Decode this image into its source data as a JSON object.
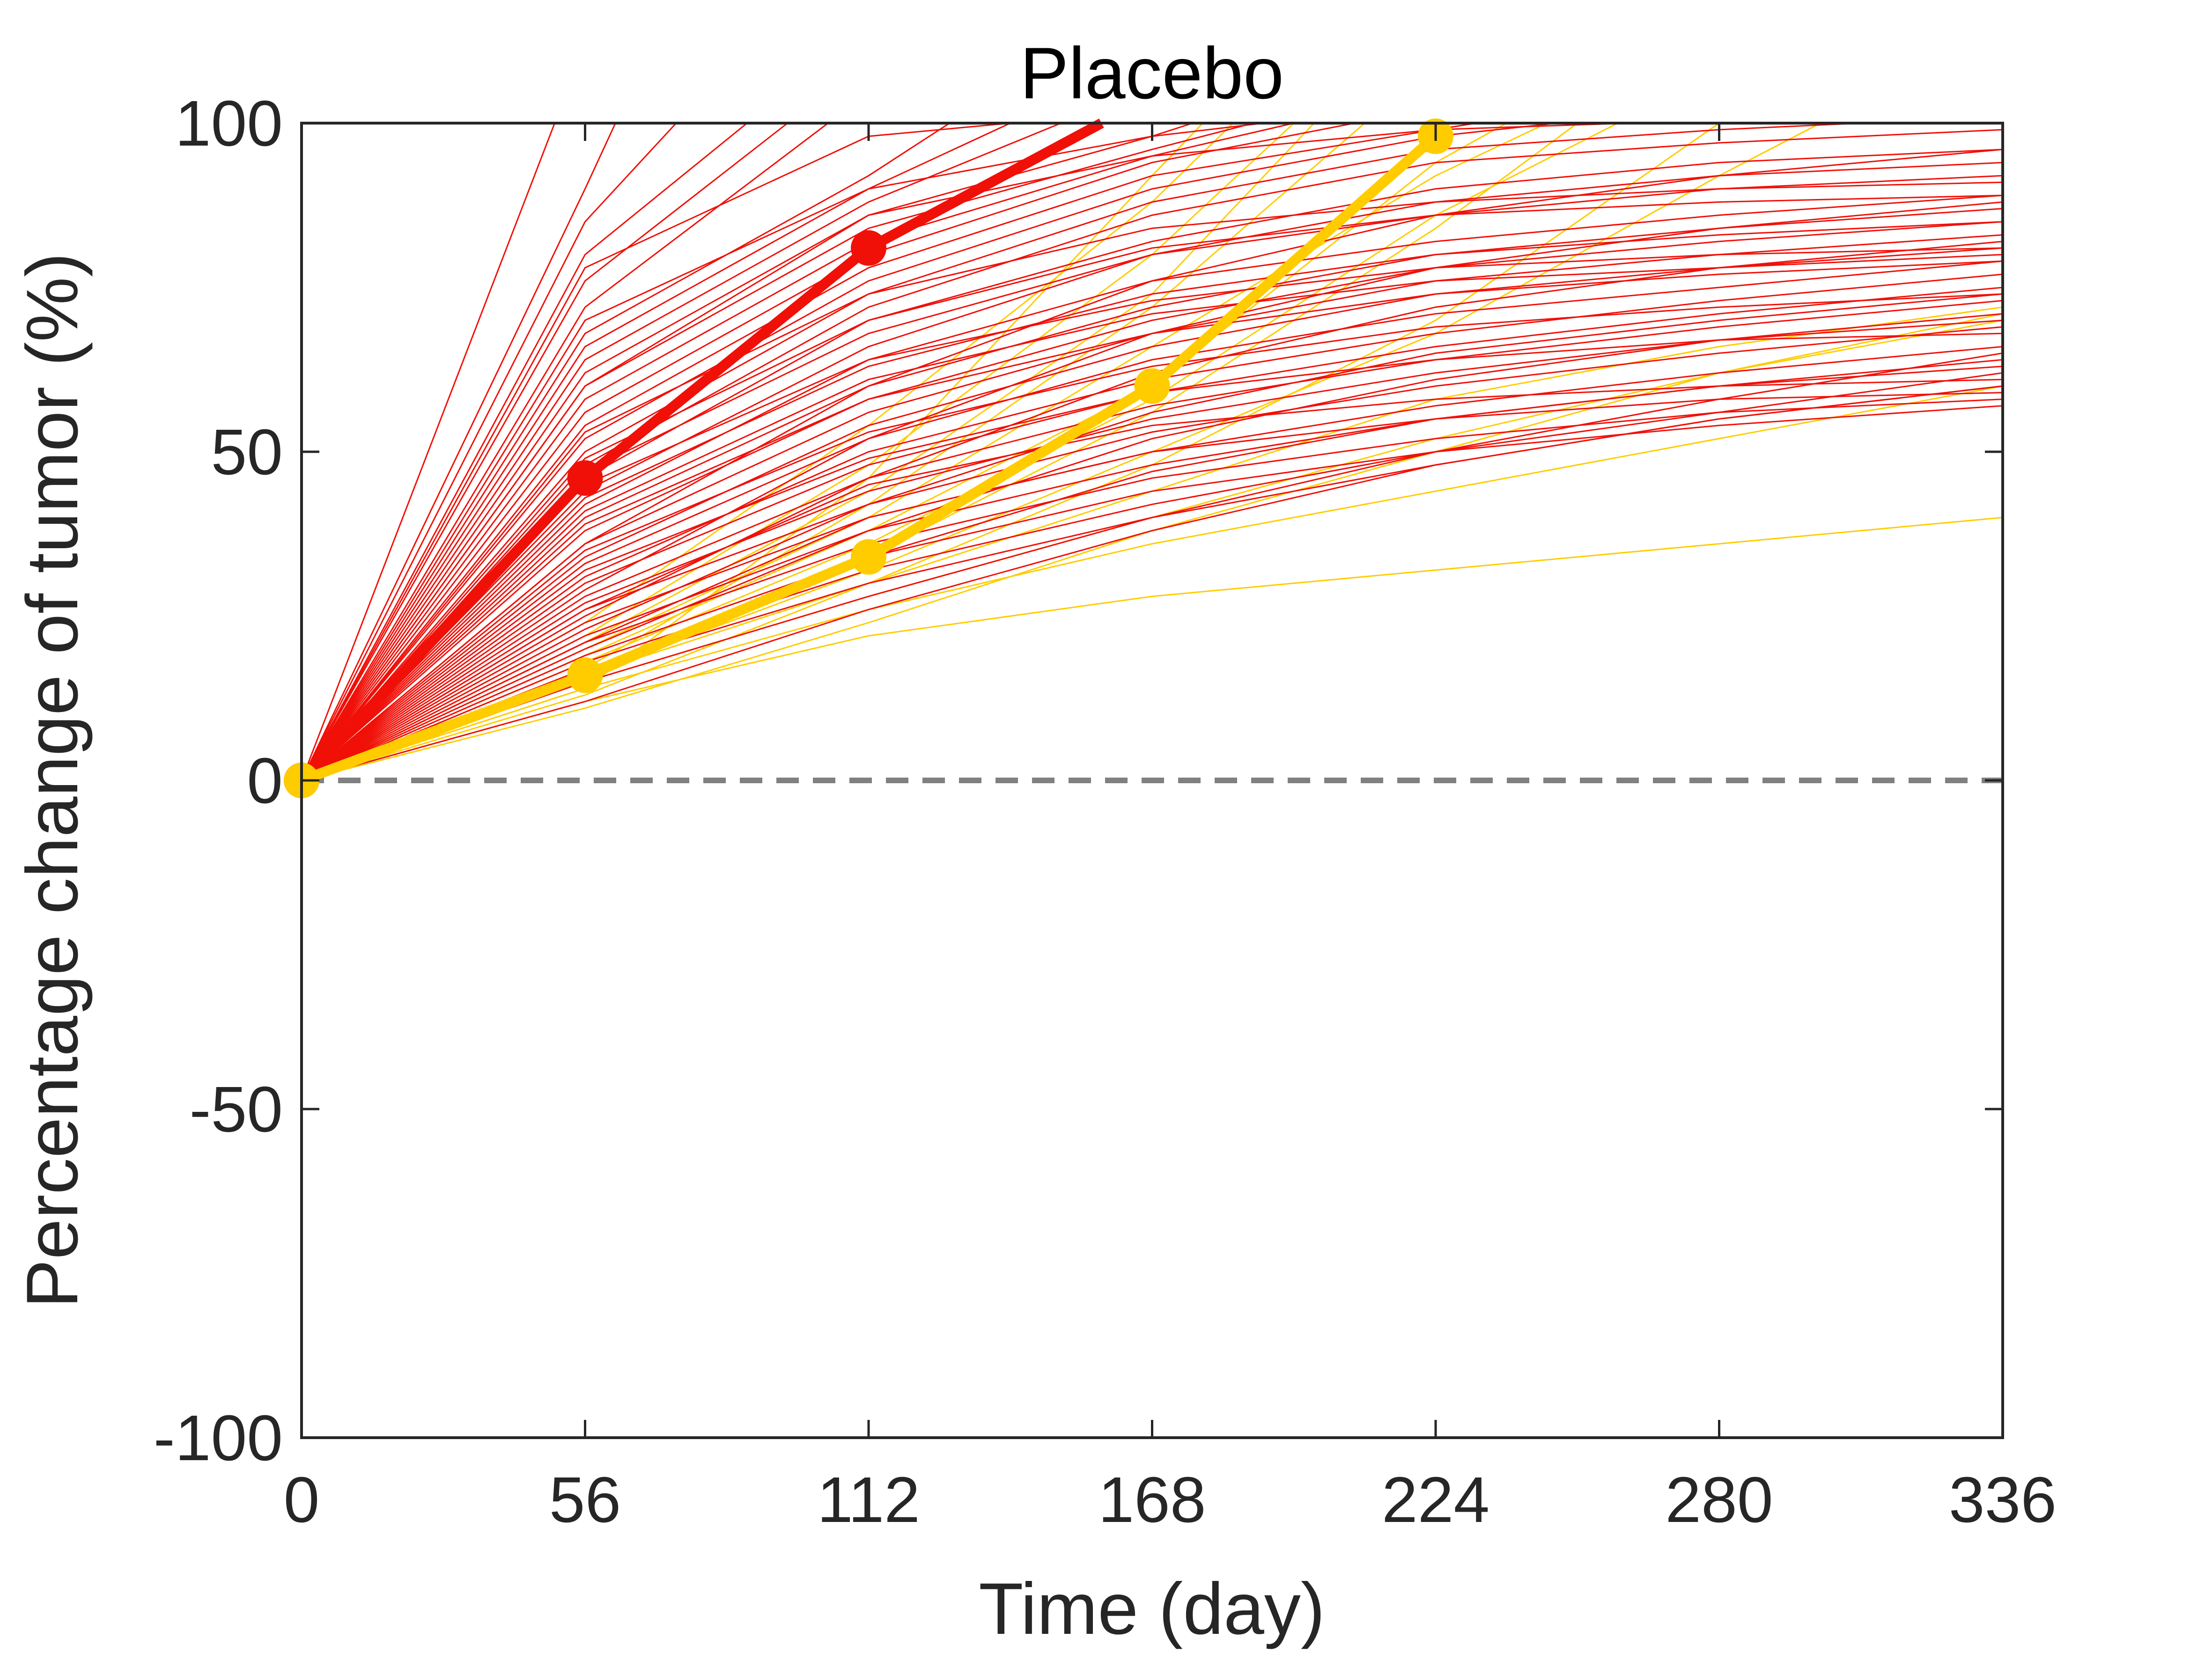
{
  "chart_data": {
    "type": "line",
    "title": "Placebo",
    "xlabel": "Time (day)",
    "ylabel": "Percentage change of tumor (%)",
    "xlim": [
      0,
      336
    ],
    "ylim": [
      -100,
      100
    ],
    "xticks": [
      0,
      56,
      112,
      168,
      224,
      280,
      336
    ],
    "yticks": [
      -100,
      -50,
      0,
      50,
      100
    ],
    "xtick_labels": [
      "0",
      "56",
      "112",
      "168",
      "224",
      "280",
      "336"
    ],
    "ytick_labels": [
      "-100",
      "-50",
      "0",
      "50",
      "100"
    ],
    "grid": false,
    "reference_line": {
      "y": 0,
      "style": "dashed",
      "color": "#808080"
    },
    "colors": {
      "red": "#f01008",
      "yellow": "#ffcc00"
    },
    "highlight_series": [
      {
        "color": "#f01008",
        "x": [
          0,
          56,
          112,
          158
        ],
        "y": [
          0,
          46,
          81,
          100
        ]
      },
      {
        "color": "#ffcc00",
        "x": [
          0,
          56,
          112,
          168,
          224
        ],
        "y": [
          0,
          16,
          34,
          60,
          98
        ]
      }
    ],
    "individual_red_series": [
      {
        "x": [
          0,
          50
        ],
        "y": [
          0,
          100
        ]
      },
      {
        "x": [
          0,
          56,
          62
        ],
        "y": [
          0,
          90,
          100
        ]
      },
      {
        "x": [
          0,
          56,
          74
        ],
        "y": [
          0,
          85,
          100
        ]
      },
      {
        "x": [
          0,
          56,
          88
        ],
        "y": [
          0,
          80,
          100
        ]
      },
      {
        "x": [
          0,
          56,
          96
        ],
        "y": [
          0,
          76,
          100
        ]
      },
      {
        "x": [
          0,
          56,
          104
        ],
        "y": [
          0,
          72,
          100
        ]
      },
      {
        "x": [
          0,
          56,
          112,
          128
        ],
        "y": [
          0,
          68,
          92,
          100
        ]
      },
      {
        "x": [
          0,
          56,
          112,
          140
        ],
        "y": [
          0,
          66,
          90,
          100
        ]
      },
      {
        "x": [
          0,
          56,
          112,
          150
        ],
        "y": [
          0,
          64,
          88,
          100
        ]
      },
      {
        "x": [
          0,
          56,
          112,
          168,
          176
        ],
        "y": [
          0,
          62,
          86,
          98,
          100
        ]
      },
      {
        "x": [
          0,
          56,
          112,
          168,
          188
        ],
        "y": [
          0,
          60,
          84,
          96,
          100
        ]
      },
      {
        "x": [
          0,
          56,
          112,
          168,
          196
        ],
        "y": [
          0,
          58,
          82,
          95,
          100
        ]
      },
      {
        "x": [
          0,
          56,
          112,
          168,
          208
        ],
        "y": [
          0,
          56,
          80,
          94,
          100
        ]
      },
      {
        "x": [
          0,
          56,
          112,
          168,
          224,
          232
        ],
        "y": [
          0,
          54,
          78,
          92,
          99,
          100
        ]
      },
      {
        "x": [
          0,
          56,
          112,
          168,
          224,
          248
        ],
        "y": [
          0,
          52,
          76,
          90,
          98,
          100
        ]
      },
      {
        "x": [
          0,
          56,
          112,
          168,
          224,
          280,
          308
        ],
        "y": [
          0,
          50,
          74,
          88,
          96,
          99,
          100
        ]
      },
      {
        "x": [
          0,
          56,
          112,
          168,
          224,
          280,
          336
        ],
        "y": [
          0,
          48,
          72,
          86,
          94,
          97,
          99
        ]
      },
      {
        "x": [
          0,
          56,
          112,
          168,
          224,
          280,
          336
        ],
        "y": [
          0,
          46,
          70,
          82,
          90,
          94,
          96
        ]
      },
      {
        "x": [
          0,
          56,
          112,
          168,
          224,
          280,
          336
        ],
        "y": [
          0,
          44,
          66,
          80,
          86,
          90,
          92
        ]
      },
      {
        "x": [
          0,
          56,
          112,
          168,
          224,
          280,
          336
        ],
        "y": [
          0,
          42,
          64,
          76,
          82,
          86,
          89
        ]
      },
      {
        "x": [
          0,
          56,
          112,
          168,
          224,
          280,
          336
        ],
        "y": [
          0,
          40,
          60,
          72,
          80,
          84,
          87
        ]
      },
      {
        "x": [
          0,
          56,
          112,
          168,
          224,
          280,
          336
        ],
        "y": [
          0,
          38,
          58,
          70,
          78,
          82,
          85
        ]
      },
      {
        "x": [
          0,
          56,
          112,
          168,
          224,
          280,
          336
        ],
        "y": [
          0,
          36,
          56,
          68,
          76,
          80,
          83
        ]
      },
      {
        "x": [
          0,
          56,
          112,
          168,
          224,
          280,
          336
        ],
        "y": [
          0,
          34,
          54,
          66,
          74,
          78,
          81
        ]
      },
      {
        "x": [
          0,
          56,
          112,
          168,
          224,
          280,
          336
        ],
        "y": [
          0,
          33,
          52,
          64,
          71,
          75,
          79
        ]
      },
      {
        "x": [
          0,
          56,
          112,
          168,
          224,
          280,
          336
        ],
        "y": [
          0,
          31,
          50,
          61,
          68,
          73,
          77
        ]
      },
      {
        "x": [
          0,
          56,
          112,
          168,
          224,
          280,
          336
        ],
        "y": [
          0,
          30,
          48,
          59,
          66,
          71,
          75
        ]
      },
      {
        "x": [
          0,
          56,
          112,
          168,
          224,
          280,
          336
        ],
        "y": [
          0,
          28,
          46,
          57,
          64,
          69,
          73
        ]
      },
      {
        "x": [
          0,
          56,
          112,
          168,
          224,
          280,
          336
        ],
        "y": [
          0,
          27,
          44,
          55,
          62,
          67,
          71
        ]
      },
      {
        "x": [
          0,
          56,
          112,
          168,
          224,
          280,
          336
        ],
        "y": [
          0,
          26,
          42,
          53,
          60,
          65,
          69
        ]
      },
      {
        "x": [
          0,
          56,
          112,
          168,
          224,
          280,
          336
        ],
        "y": [
          0,
          24,
          40,
          50,
          57,
          62,
          66
        ]
      },
      {
        "x": [
          0,
          56,
          112,
          168,
          224,
          280,
          336
        ],
        "y": [
          0,
          22,
          38,
          48,
          55,
          60,
          64
        ]
      },
      {
        "x": [
          0,
          56,
          112,
          168,
          224,
          280,
          336
        ],
        "y": [
          0,
          21,
          36,
          46,
          52,
          56,
          58
        ]
      },
      {
        "x": [
          0,
          56,
          112,
          168,
          224,
          280,
          336
        ],
        "y": [
          0,
          19,
          34,
          44,
          50,
          54,
          57
        ]
      },
      {
        "x": [
          0,
          56,
          112,
          168,
          224,
          280,
          336
        ],
        "y": [
          0,
          18,
          32,
          42,
          50,
          56,
          62
        ]
      },
      {
        "x": [
          0,
          56,
          112,
          168,
          224,
          280,
          336
        ],
        "y": [
          0,
          17,
          30,
          40,
          48,
          55,
          60
        ]
      },
      {
        "x": [
          0,
          56,
          112,
          168,
          224,
          280,
          336
        ],
        "y": [
          0,
          36,
          60,
          76,
          86,
          92,
          96
        ]
      },
      {
        "x": [
          0,
          56,
          112,
          168,
          224,
          280,
          336
        ],
        "y": [
          0,
          29,
          52,
          68,
          78,
          84,
          88
        ]
      },
      {
        "x": [
          0,
          56,
          112,
          168,
          224,
          280,
          336
        ],
        "y": [
          0,
          25,
          46,
          62,
          72,
          78,
          82
        ]
      },
      {
        "x": [
          0,
          56,
          112,
          168,
          224,
          280,
          336
        ],
        "y": [
          0,
          23,
          42,
          56,
          65,
          70,
          74
        ]
      },
      {
        "x": [
          0,
          56,
          112,
          168,
          224,
          280,
          336
        ],
        "y": [
          0,
          20,
          38,
          52,
          61,
          67,
          70
        ]
      },
      {
        "x": [
          0,
          56,
          112,
          168,
          224,
          280,
          336
        ],
        "y": [
          0,
          16,
          34,
          47,
          55,
          60,
          63
        ]
      },
      {
        "x": [
          0,
          56,
          112,
          140
        ],
        "y": [
          0,
          78,
          98,
          100
        ]
      },
      {
        "x": [
          0,
          56,
          112,
          168,
          190
        ],
        "y": [
          0,
          70,
          90,
          98,
          100
        ]
      },
      {
        "x": [
          0,
          56,
          112,
          168,
          224,
          262
        ],
        "y": [
          0,
          60,
          86,
          95,
          99,
          100
        ]
      },
      {
        "x": [
          0,
          56,
          112,
          168,
          224,
          280,
          336
        ],
        "y": [
          0,
          47,
          68,
          80,
          88,
          92,
          94
        ]
      },
      {
        "x": [
          0,
          56,
          112,
          168,
          224,
          280,
          336
        ],
        "y": [
          0,
          43,
          63,
          74,
          80,
          83,
          85
        ]
      },
      {
        "x": [
          0,
          56,
          112,
          168,
          224,
          280,
          336
        ],
        "y": [
          0,
          39,
          58,
          68,
          74,
          77,
          79
        ]
      },
      {
        "x": [
          0,
          56,
          112,
          168,
          224,
          280,
          336
        ],
        "y": [
          0,
          35,
          53,
          63,
          69,
          72,
          74
        ]
      },
      {
        "x": [
          0,
          56,
          112,
          168,
          224,
          280,
          336
        ],
        "y": [
          0,
          32,
          49,
          59,
          64,
          67,
          68
        ]
      },
      {
        "x": [
          0,
          56,
          112,
          168,
          224,
          280,
          336
        ],
        "y": [
          0,
          26,
          45,
          54,
          58,
          60,
          61
        ]
      },
      {
        "x": [
          0,
          56,
          112,
          168,
          224,
          280,
          336
        ],
        "y": [
          0,
          21,
          40,
          50,
          55,
          58,
          59
        ]
      },
      {
        "x": [
          0,
          56,
          112,
          168,
          224,
          280,
          336
        ],
        "y": [
          0,
          15,
          28,
          40,
          50,
          58,
          65
        ]
      },
      {
        "x": [
          0,
          56,
          112,
          168,
          224,
          280,
          336
        ],
        "y": [
          0,
          12,
          26,
          38,
          48,
          55,
          60
        ]
      },
      {
        "x": [
          0,
          56,
          112,
          168,
          224,
          280,
          336
        ],
        "y": [
          0,
          53,
          74,
          84,
          88,
          90,
          91
        ]
      },
      {
        "x": [
          0,
          56,
          112,
          168,
          224,
          280,
          336
        ],
        "y": [
          0,
          49,
          70,
          81,
          86,
          88,
          89
        ]
      },
      {
        "x": [
          0,
          56,
          112,
          168,
          224,
          280,
          336
        ],
        "y": [
          0,
          45,
          64,
          73,
          78,
          80,
          81
        ]
      },
      {
        "x": [
          0,
          56,
          112,
          168,
          224,
          280,
          336
        ],
        "y": [
          0,
          41,
          61,
          71,
          76,
          78,
          80
        ]
      }
    ],
    "individual_yellow_series": [
      {
        "x": [
          0,
          56,
          112,
          168,
          224,
          280,
          336
        ],
        "y": [
          0,
          12,
          22,
          28,
          32,
          36,
          40
        ]
      },
      {
        "x": [
          0,
          56,
          112,
          168,
          224,
          280,
          336
        ],
        "y": [
          0,
          14,
          26,
          36,
          44,
          52,
          60
        ]
      },
      {
        "x": [
          0,
          56,
          112,
          168,
          224,
          280,
          336
        ],
        "y": [
          0,
          15,
          28,
          40,
          52,
          62,
          71
        ]
      },
      {
        "x": [
          0,
          56,
          112,
          168,
          224,
          280,
          336
        ],
        "y": [
          0,
          11,
          24,
          38,
          50,
          62,
          70
        ]
      },
      {
        "x": [
          0,
          56,
          112,
          168,
          224,
          260
        ],
        "y": [
          0,
          18,
          36,
          58,
          86,
          100
        ]
      },
      {
        "x": [
          0,
          56,
          112,
          168,
          224,
          246
        ],
        "y": [
          0,
          20,
          40,
          66,
          92,
          100
        ]
      },
      {
        "x": [
          0,
          56,
          112,
          168,
          210
        ],
        "y": [
          0,
          17,
          42,
          72,
          100
        ]
      },
      {
        "x": [
          0,
          56,
          112,
          168,
          196
        ],
        "y": [
          0,
          22,
          48,
          80,
          100
        ]
      },
      {
        "x": [
          0,
          56,
          112,
          168,
          184
        ],
        "y": [
          0,
          24,
          54,
          88,
          100
        ]
      },
      {
        "x": [
          0,
          56,
          112,
          168,
          178
        ],
        "y": [
          0,
          14,
          46,
          92,
          100
        ]
      },
      {
        "x": [
          0,
          56,
          112,
          168,
          224,
          280
        ],
        "y": [
          0,
          16,
          30,
          48,
          70,
          100
        ]
      },
      {
        "x": [
          0,
          56,
          112,
          168,
          224,
          238
        ],
        "y": [
          0,
          19,
          38,
          60,
          94,
          100
        ]
      },
      {
        "x": [
          0,
          56,
          112,
          168,
          224,
          280,
          336
        ],
        "y": [
          0,
          13,
          30,
          44,
          58,
          66,
          72
        ]
      },
      {
        "x": [
          0,
          56,
          112,
          168,
          200
        ],
        "y": [
          0,
          21,
          44,
          74,
          100
        ]
      },
      {
        "x": [
          0,
          56,
          112,
          168,
          224,
          252
        ],
        "y": [
          0,
          15,
          34,
          56,
          84,
          100
        ]
      },
      {
        "x": [
          0,
          56,
          112,
          168,
          224,
          280,
          300
        ],
        "y": [
          0,
          16,
          32,
          50,
          68,
          92,
          100
        ]
      }
    ]
  }
}
